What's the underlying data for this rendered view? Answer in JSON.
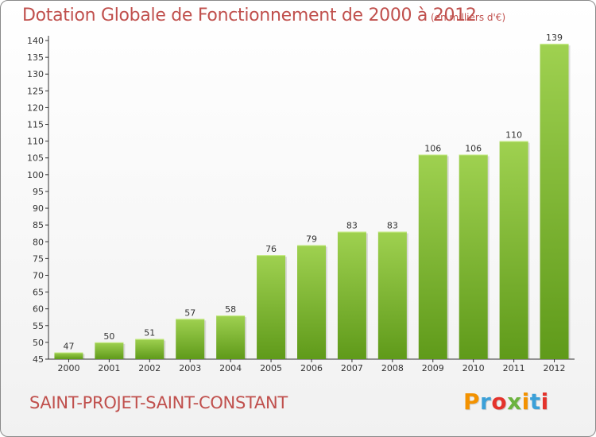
{
  "header": {
    "title": "Dotation Globale de Fonctionnement de 2000 à 2012",
    "subtitle": "(en milliers d'€)"
  },
  "footer": {
    "commune": "SAINT-PROJET-SAINT-CONSTANT",
    "logo": "Proxiti"
  },
  "colors": {
    "title": "#c0504d",
    "bar_top": "#9fd150",
    "bar_bottom": "#5f9a1a",
    "logo_letters": [
      "#f39200",
      "#3ba0d8",
      "#e4332c",
      "#6cb33f",
      "#f39200",
      "#3ba0d8",
      "#e4332c"
    ]
  },
  "chart_data": {
    "type": "bar",
    "categories": [
      "2000",
      "2001",
      "2002",
      "2003",
      "2004",
      "2005",
      "2006",
      "2007",
      "2008",
      "2009",
      "2010",
      "2011",
      "2012"
    ],
    "values": [
      47,
      50,
      51,
      57,
      58,
      76,
      79,
      83,
      83,
      106,
      106,
      110,
      139
    ],
    "ylim": [
      45,
      140
    ],
    "yticks": [
      45,
      50,
      55,
      60,
      65,
      70,
      75,
      80,
      85,
      90,
      95,
      100,
      105,
      110,
      115,
      120,
      125,
      130,
      135,
      140
    ],
    "grid": false,
    "data_labels": true
  }
}
